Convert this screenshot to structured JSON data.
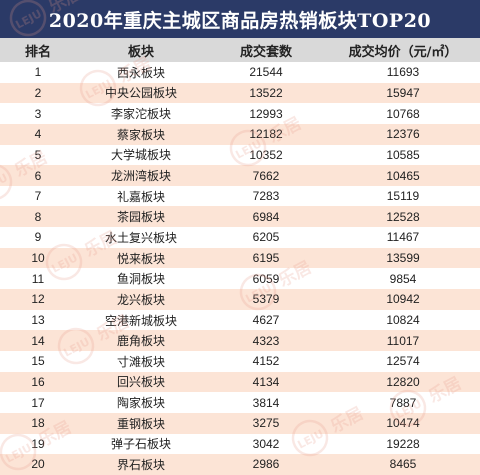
{
  "title": "2020年重庆主城区商品房热销板块TOP20",
  "columns": [
    "排名",
    "板块",
    "成交套数",
    "成交均价（元/㎡）"
  ],
  "rows": [
    {
      "rank": "1",
      "name": "西永板块",
      "sets": "21544",
      "price": "11693"
    },
    {
      "rank": "2",
      "name": "中央公园板块",
      "sets": "13522",
      "price": "15947"
    },
    {
      "rank": "3",
      "name": "李家沱板块",
      "sets": "12993",
      "price": "10768"
    },
    {
      "rank": "4",
      "name": "蔡家板块",
      "sets": "12182",
      "price": "12376"
    },
    {
      "rank": "5",
      "name": "大学城板块",
      "sets": "10352",
      "price": "10585"
    },
    {
      "rank": "6",
      "name": "龙洲湾板块",
      "sets": "7662",
      "price": "10465"
    },
    {
      "rank": "7",
      "name": "礼嘉板块",
      "sets": "7283",
      "price": "15119"
    },
    {
      "rank": "8",
      "name": "茶园板块",
      "sets": "6984",
      "price": "12528"
    },
    {
      "rank": "9",
      "name": "水土复兴板块",
      "sets": "6205",
      "price": "11467"
    },
    {
      "rank": "10",
      "name": "悦来板块",
      "sets": "6195",
      "price": "13599"
    },
    {
      "rank": "11",
      "name": "鱼洞板块",
      "sets": "6059",
      "price": "9854"
    },
    {
      "rank": "12",
      "name": "龙兴板块",
      "sets": "5379",
      "price": "10942"
    },
    {
      "rank": "13",
      "name": "空港新城板块",
      "sets": "4627",
      "price": "10824"
    },
    {
      "rank": "14",
      "name": "鹿角板块",
      "sets": "4323",
      "price": "11017"
    },
    {
      "rank": "15",
      "name": "寸滩板块",
      "sets": "4152",
      "price": "12574"
    },
    {
      "rank": "16",
      "name": "回兴板块",
      "sets": "4134",
      "price": "12820"
    },
    {
      "rank": "17",
      "name": "陶家板块",
      "sets": "3814",
      "price": "7887"
    },
    {
      "rank": "18",
      "name": "重钢板块",
      "sets": "3275",
      "price": "10474"
    },
    {
      "rank": "19",
      "name": "弹子石板块",
      "sets": "3042",
      "price": "19228"
    },
    {
      "rank": "20",
      "name": "界石板块",
      "sets": "2986",
      "price": "8465"
    }
  ],
  "watermark": {
    "latin": "LEJU",
    "chinese": "乐居"
  },
  "colors": {
    "title_bg": "#2b3a67",
    "header_bg": "#d9d9d9",
    "stripe": "#fce4d6",
    "watermark": "#e89a8a"
  }
}
